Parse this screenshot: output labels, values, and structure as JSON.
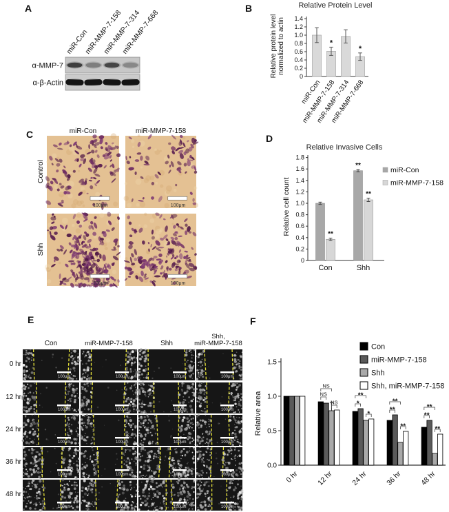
{
  "panels": {
    "a": "A",
    "b": "B",
    "c": "C",
    "d": "D",
    "e": "E",
    "f": "F"
  },
  "panel_a": {
    "lanes": [
      "miR-Con",
      "miR-MMP-7-158",
      "miR-MMP-7-314",
      "miR-MMP-7-668"
    ],
    "blot_rows": [
      {
        "label": "α-MMP-7",
        "bands": [
          0.95,
          0.45,
          0.88,
          0.38
        ]
      },
      {
        "label": "α-β-Actin",
        "bands": [
          1,
          1,
          1,
          1
        ]
      }
    ]
  },
  "panel_c": {
    "col_headers": [
      "miR-Con",
      "miR-MMP-7-158"
    ],
    "row_headers": [
      "Control",
      "Shh"
    ],
    "scale_bar_label": "100μm",
    "cell_density": [
      [
        0.5,
        0.28
      ],
      [
        0.95,
        0.7
      ]
    ],
    "colors": {
      "background": "#e4c193",
      "stain": "#6d2a62"
    }
  },
  "panel_e": {
    "col_headers": [
      "Con",
      "miR-MMP-7-158",
      "Shh"
    ],
    "col4_header": {
      "line1": "Shh,",
      "line2": "miR-MMP-7-158"
    },
    "row_headers": [
      "0 hr",
      "12 hr",
      "24 hr",
      "36 hr",
      "48 hr"
    ],
    "scale_bar_label": "100μm",
    "gap_fractions": [
      [
        0.66,
        0.66,
        0.66,
        0.66
      ],
      [
        0.6,
        0.59,
        0.52,
        0.53
      ],
      [
        0.51,
        0.54,
        0.42,
        0.44
      ],
      [
        0.42,
        0.48,
        0.21,
        0.32
      ],
      [
        0.36,
        0.42,
        0.11,
        0.29
      ]
    ],
    "colors": {
      "background": "#161616",
      "cells": "#c9c9c9",
      "dashed_line": "#e8e43a"
    }
  },
  "chart_data": [
    {
      "id": "panel_b",
      "type": "bar",
      "title": "Relative Protein Level",
      "ylabel_lines": [
        "Relative protein level",
        "normalized to actin"
      ],
      "categories": [
        "miR-Con",
        "miR-MMP-7-158",
        "miR-MMP-7-314",
        "miR-MMP-7-668"
      ],
      "values": [
        1.0,
        0.61,
        0.97,
        0.48
      ],
      "errors": [
        0.18,
        0.1,
        0.16,
        0.09
      ],
      "significance": [
        "",
        "*",
        "",
        "*"
      ],
      "ylim": [
        0,
        1.4
      ],
      "ytick_step": 0.2,
      "zero_label": "0",
      "bar_color": "#d9d9d9",
      "grid": false
    },
    {
      "id": "panel_d",
      "type": "bar",
      "title": "Relative Invasive Cells",
      "ylabel": "Relative cell count",
      "categories": [
        "Con",
        "Shh"
      ],
      "series": [
        {
          "name": "miR-Con",
          "color": "#a8a8a8",
          "values": [
            1.0,
            1.57
          ],
          "errors": [
            0.02,
            0.02
          ],
          "significance": [
            "",
            "**"
          ]
        },
        {
          "name": "miR-MMP-7-158",
          "color": "#d7d7d7",
          "values": [
            0.37,
            1.06
          ],
          "errors": [
            0.02,
            0.03
          ],
          "significance": [
            "**",
            "**"
          ]
        }
      ],
      "ylim": [
        0,
        1.8
      ],
      "ytick_step": 0.2,
      "zero_label": "0",
      "legend_position": "right",
      "grid": false
    },
    {
      "id": "panel_f",
      "type": "bar",
      "title": "",
      "ylabel": "Relative area",
      "categories": [
        "0 hr",
        "12 hr",
        "24 hr",
        "36 hr",
        "48 hr"
      ],
      "series": [
        {
          "name": "Con",
          "color": "#000000",
          "values": [
            1.0,
            0.92,
            0.78,
            0.65,
            0.55
          ],
          "errors": [
            0,
            0,
            0,
            0,
            0
          ]
        },
        {
          "name": "miR-MMP-7-158",
          "color": "#5a5a5a",
          "values": [
            1.0,
            0.9,
            0.82,
            0.73,
            0.65
          ],
          "errors": [
            0,
            0,
            0,
            0,
            0
          ]
        },
        {
          "name": "Shh",
          "color": "#a9a9a9",
          "values": [
            1.0,
            0.79,
            0.65,
            0.33,
            0.17
          ],
          "errors": [
            0,
            0.12,
            0,
            0,
            0
          ]
        },
        {
          "name": "Shh, miR-MMP-7-158",
          "color": "#ffffff",
          "values": [
            1.0,
            0.8,
            0.67,
            0.49,
            0.45
          ],
          "errors": [
            0,
            0,
            0,
            0,
            0
          ]
        }
      ],
      "ylim": [
        0,
        1.5
      ],
      "ytick_step": 0.5,
      "zero_label": "0.0",
      "legend_position": "top-right",
      "grid": false,
      "sig_brackets": [
        {
          "group_index": 1,
          "brackets": [
            {
              "bars": [
                0,
                1
              ],
              "label": "NS"
            },
            {
              "bars": [
                0,
                2
              ],
              "label": "NS"
            },
            {
              "bars": [
                2,
                3
              ],
              "label": "NS"
            }
          ]
        },
        {
          "group_index": 2,
          "brackets": [
            {
              "bars": [
                0,
                1
              ],
              "label": "*"
            },
            {
              "bars": [
                0,
                2
              ],
              "label": "**"
            },
            {
              "bars": [
                2,
                3
              ],
              "label": "*"
            }
          ]
        },
        {
          "group_index": 3,
          "brackets": [
            {
              "bars": [
                0,
                1
              ],
              "label": "**"
            },
            {
              "bars": [
                0,
                2
              ],
              "label": "**"
            },
            {
              "bars": [
                2,
                3
              ],
              "label": "**"
            }
          ]
        },
        {
          "group_index": 4,
          "brackets": [
            {
              "bars": [
                0,
                1
              ],
              "label": "**"
            },
            {
              "bars": [
                0,
                2
              ],
              "label": "**"
            },
            {
              "bars": [
                2,
                3
              ],
              "label": "**"
            }
          ]
        }
      ]
    }
  ]
}
